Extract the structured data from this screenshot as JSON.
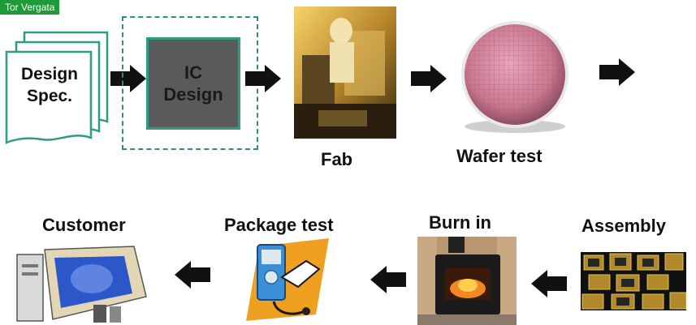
{
  "header_tag": "Tor Vergata",
  "design_spec": {
    "text": "Design\nSpec."
  },
  "ic_design": {
    "text": "IC\nDesign"
  },
  "stages": {
    "fab": "Fab",
    "wafer_test": "Wafer test",
    "assembly": "Assembly",
    "burn_in": "Burn in",
    "package_test": "Package test",
    "customer": "Customer"
  },
  "colors": {
    "accent_teal": "#2d8f7e",
    "ic_box_fill": "#5a5a5a",
    "tag_green": "#1f9a3a",
    "arrow": "#111111"
  }
}
